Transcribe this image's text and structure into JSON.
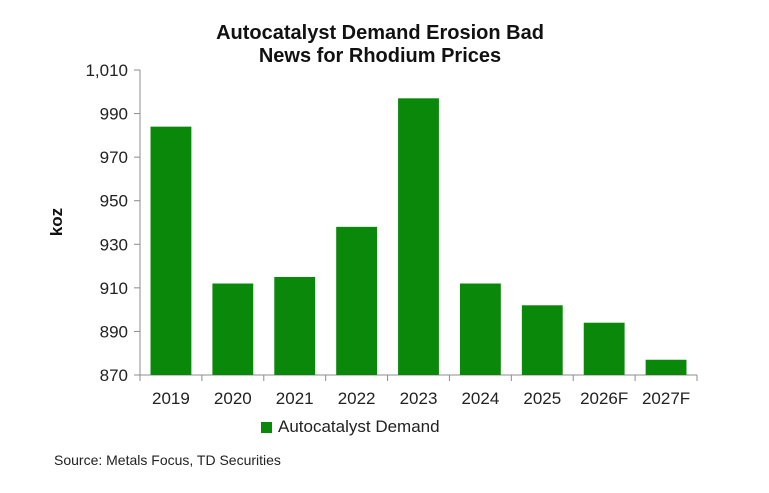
{
  "chart_data": {
    "type": "bar",
    "title_lines": [
      "Autocatalyst Demand Erosion Bad",
      "News for Rhodium Prices"
    ],
    "ylabel": "koz",
    "xlabel": "",
    "categories": [
      "2019",
      "2020",
      "2021",
      "2022",
      "2023",
      "2024",
      "2025",
      "2026F",
      "2027F"
    ],
    "series": [
      {
        "name": "Autocatalyst Demand",
        "color": "#0a880a",
        "values": [
          984,
          912,
          915,
          938,
          997,
          912,
          902,
          894,
          877
        ]
      }
    ],
    "ylim": [
      870,
      1010
    ],
    "yticks": [
      870,
      890,
      910,
      930,
      950,
      970,
      990,
      1010
    ],
    "ytick_labels": [
      "870",
      "890",
      "910",
      "930",
      "950",
      "970",
      "990",
      "1,010"
    ],
    "grid": false,
    "legend_position": "bottom"
  },
  "source": "Source: Metals Focus, TD Securities"
}
